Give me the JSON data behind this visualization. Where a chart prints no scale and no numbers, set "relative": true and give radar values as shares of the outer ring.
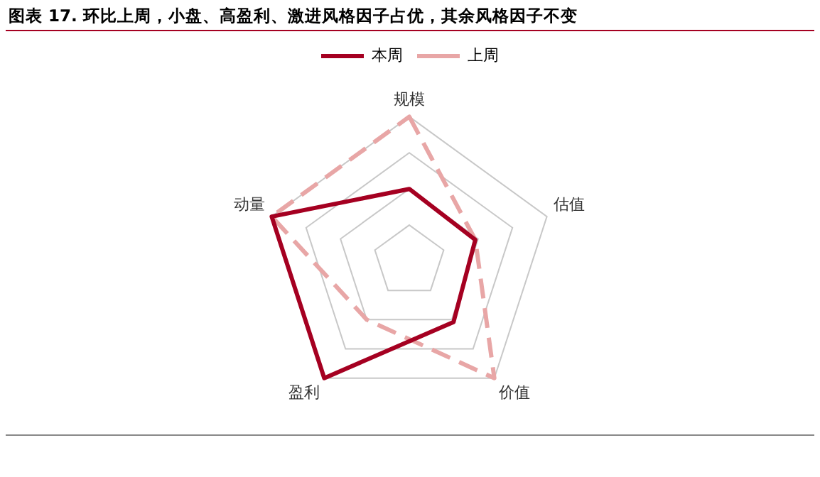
{
  "chart_data": {
    "type": "radar",
    "title": "图表 17. 环比上周，小盘、高盈利、激进风格因子占优，其余风格因子不变",
    "categories": [
      "规模",
      "估值",
      "价值",
      "盈利",
      "动量"
    ],
    "relative": true,
    "grid": true,
    "legend": "top",
    "line_style": "solid",
    "marker": "none",
    "series": [
      {
        "name": "本周",
        "color": "#a50021",
        "values": [
          0.5,
          0.48,
          0.52,
          1,
          1
        ]
      },
      {
        "name": "上周",
        "color": "#e8a6a6",
        "values": [
          1,
          0.48,
          1,
          0.5,
          1
        ],
        "line_style": "dashed"
      }
    ]
  }
}
